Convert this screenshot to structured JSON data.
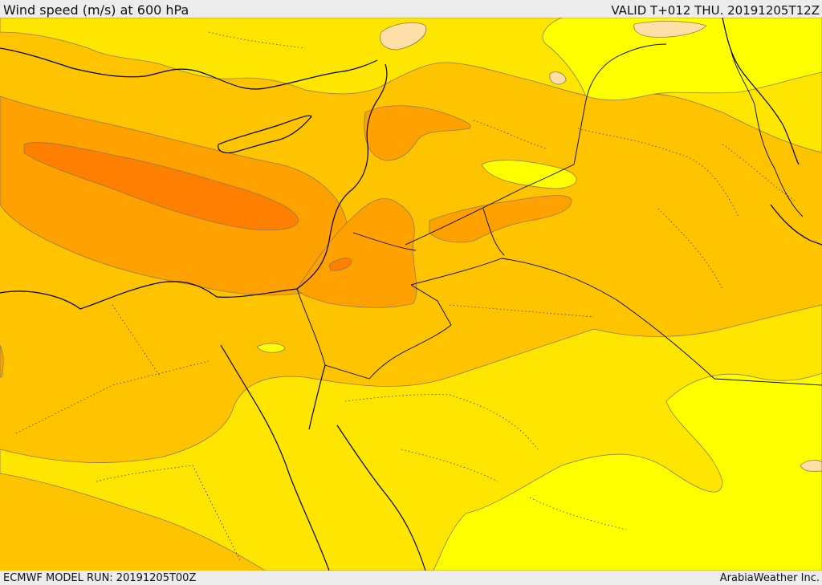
{
  "header": {
    "title": "Wind speed (m/s) at 600 hPa",
    "valid": "VALID T+012 THU. 20191205T12Z"
  },
  "footer": {
    "model_run": "ECMWF MODEL RUN: 20191205T00Z",
    "credit": "ArabiaWeather Inc."
  },
  "colors": {
    "band_weakest": "#ffff00",
    "band_low": "#ffe600",
    "band_mid": "#ffc400",
    "band_high": "#ffa200",
    "band_strongest": "#ff7f00",
    "calm_patch": "#ffdfa8",
    "coastline": "#000000",
    "contour": "#7a6a4a"
  }
}
